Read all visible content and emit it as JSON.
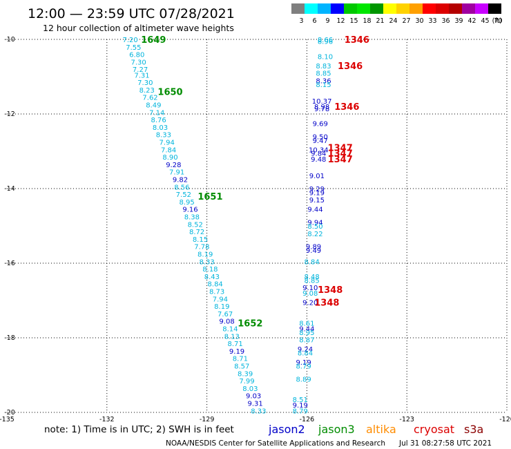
{
  "header": {
    "title": "12:00 — 23:59 UTC 07/28/2021",
    "subtitle": "12 hour collection of altimeter wave heights"
  },
  "colorbar": {
    "unit_label": "(ft)",
    "ticks": [
      "3",
      "6",
      "9",
      "12",
      "15",
      "18",
      "21",
      "24",
      "27",
      "30",
      "33",
      "36",
      "39",
      "42",
      "45",
      "70"
    ],
    "colors": [
      "#7f7f7f",
      "#00ffff",
      "#00b4ff",
      "#0000ff",
      "#00c800",
      "#00e600",
      "#009600",
      "#ffff00",
      "#ffd200",
      "#ffa000",
      "#ff0000",
      "#dc0000",
      "#b40000",
      "#a000a0",
      "#c800ff",
      "#000000"
    ]
  },
  "footer": {
    "note": "note:  1) Time is in UTC;  2) SWH is in feet",
    "credit": "NOAA/NESDIS Center for Satellite Applications and Research",
    "timestamp": "Jul 31 08:27:58 UTC 2021"
  },
  "legend": [
    {
      "name": "jason2",
      "color": "#0000c8"
    },
    {
      "name": "jason3",
      "color": "#008c00"
    },
    {
      "name": "altika",
      "color": "#ff8c00"
    },
    {
      "name": "cryosat",
      "color": "#dc0000"
    },
    {
      "name": "s3a",
      "color": "#8b0000"
    }
  ],
  "chart_data": {
    "type": "scatter",
    "xlim": [
      -135,
      -120
    ],
    "ylim": [
      -20,
      -10
    ],
    "x_ticks": [
      "-135",
      "-132",
      "-129",
      "-126",
      "-123",
      "-120"
    ],
    "y_ticks": [
      "-10",
      "-12",
      "-14",
      "-16",
      "-18",
      "-20"
    ],
    "grid": true,
    "colors": {
      "cyan": "#00b4dc",
      "blue": "#0000c8",
      "green": "#008c00",
      "red": "#dc0000"
    },
    "time_labels": [
      {
        "text": "1649",
        "x": -130.6,
        "y": -10.0,
        "color": "green"
      },
      {
        "text": "1650",
        "x": -130.1,
        "y": -11.4,
        "color": "green"
      },
      {
        "text": "1651",
        "x": -128.9,
        "y": -14.2,
        "color": "green"
      },
      {
        "text": "1652",
        "x": -127.7,
        "y": -17.6,
        "color": "green"
      },
      {
        "text": "1346",
        "x": -124.5,
        "y": -10.0,
        "color": "red"
      },
      {
        "text": "1346",
        "x": -124.7,
        "y": -10.7,
        "color": "red"
      },
      {
        "text": "1346",
        "x": -124.8,
        "y": -11.8,
        "color": "red"
      },
      {
        "text": "1347",
        "x": -125.0,
        "y": -12.9,
        "color": "red"
      },
      {
        "text": "1347",
        "x": -125.0,
        "y": -13.05,
        "color": "red"
      },
      {
        "text": "1347",
        "x": -125.0,
        "y": -13.2,
        "color": "red"
      },
      {
        "text": "1348",
        "x": -125.3,
        "y": -16.7,
        "color": "red"
      },
      {
        "text": "1348",
        "x": -125.4,
        "y": -17.05,
        "color": "red"
      }
    ],
    "series": [
      {
        "name": "jason3",
        "points": [
          {
            "text": "7.20",
            "x": -131.3,
            "y": -10.0,
            "color": "cyan"
          },
          {
            "text": "7.55",
            "x": -131.2,
            "y": -10.2,
            "color": "cyan"
          },
          {
            "text": "6.80",
            "x": -131.1,
            "y": -10.4,
            "color": "cyan"
          },
          {
            "text": "7.30",
            "x": -131.05,
            "y": -10.6,
            "color": "cyan"
          },
          {
            "text": "7.27",
            "x": -131.0,
            "y": -10.8,
            "color": "cyan"
          },
          {
            "text": "7.31",
            "x": -130.95,
            "y": -10.95,
            "color": "cyan"
          },
          {
            "text": "7.30",
            "x": -130.85,
            "y": -11.15,
            "color": "cyan"
          },
          {
            "text": "8.23",
            "x": -130.8,
            "y": -11.35,
            "color": "cyan"
          },
          {
            "text": "7.62",
            "x": -130.7,
            "y": -11.55,
            "color": "cyan"
          },
          {
            "text": "8.49",
            "x": -130.6,
            "y": -11.75,
            "color": "cyan"
          },
          {
            "text": "7.14",
            "x": -130.5,
            "y": -11.95,
            "color": "cyan"
          },
          {
            "text": "8.76",
            "x": -130.45,
            "y": -12.15,
            "color": "cyan"
          },
          {
            "text": "8.03",
            "x": -130.4,
            "y": -12.35,
            "color": "cyan"
          },
          {
            "text": "8.33",
            "x": -130.3,
            "y": -12.55,
            "color": "cyan"
          },
          {
            "text": "7.94",
            "x": -130.2,
            "y": -12.75,
            "color": "cyan"
          },
          {
            "text": "7.84",
            "x": -130.15,
            "y": -12.95,
            "color": "cyan"
          },
          {
            "text": "8.90",
            "x": -130.1,
            "y": -13.15,
            "color": "cyan"
          },
          {
            "text": "9.28",
            "x": -130.0,
            "y": -13.35,
            "color": "blue"
          },
          {
            "text": "7.91",
            "x": -129.9,
            "y": -13.55,
            "color": "cyan"
          },
          {
            "text": "9.82",
            "x": -129.8,
            "y": -13.75,
            "color": "blue"
          },
          {
            "text": "8.56",
            "x": -129.75,
            "y": -13.95,
            "color": "cyan"
          },
          {
            "text": "7.52",
            "x": -129.7,
            "y": -14.15,
            "color": "cyan"
          },
          {
            "text": "8.95",
            "x": -129.6,
            "y": -14.35,
            "color": "cyan"
          },
          {
            "text": "9.16",
            "x": -129.5,
            "y": -14.55,
            "color": "blue"
          },
          {
            "text": "8.38",
            "x": -129.45,
            "y": -14.75,
            "color": "cyan"
          },
          {
            "text": "8.52",
            "x": -129.35,
            "y": -14.95,
            "color": "cyan"
          },
          {
            "text": "8.72",
            "x": -129.3,
            "y": -15.15,
            "color": "cyan"
          },
          {
            "text": "8.15",
            "x": -129.2,
            "y": -15.35,
            "color": "cyan"
          },
          {
            "text": "7.78",
            "x": -129.15,
            "y": -15.55,
            "color": "cyan"
          },
          {
            "text": "8.19",
            "x": -129.05,
            "y": -15.75,
            "color": "cyan"
          },
          {
            "text": "8.33",
            "x": -129.0,
            "y": -15.95,
            "color": "cyan"
          },
          {
            "text": "8.18",
            "x": -128.9,
            "y": -16.15,
            "color": "cyan"
          },
          {
            "text": "8.43",
            "x": -128.85,
            "y": -16.35,
            "color": "cyan"
          },
          {
            "text": "8.84",
            "x": -128.75,
            "y": -16.55,
            "color": "cyan"
          },
          {
            "text": "8.73",
            "x": -128.7,
            "y": -16.75,
            "color": "cyan"
          },
          {
            "text": "7.94",
            "x": -128.6,
            "y": -16.95,
            "color": "cyan"
          },
          {
            "text": "8.19",
            "x": -128.55,
            "y": -17.15,
            "color": "cyan"
          },
          {
            "text": "7.67",
            "x": -128.45,
            "y": -17.35,
            "color": "cyan"
          },
          {
            "text": "9.08",
            "x": -128.4,
            "y": -17.55,
            "color": "blue"
          },
          {
            "text": "8.14",
            "x": -128.3,
            "y": -17.75,
            "color": "cyan"
          },
          {
            "text": "8.13",
            "x": -128.25,
            "y": -17.95,
            "color": "cyan"
          },
          {
            "text": "8.71",
            "x": -128.15,
            "y": -18.15,
            "color": "cyan"
          },
          {
            "text": "9.19",
            "x": -128.1,
            "y": -18.35,
            "color": "blue"
          },
          {
            "text": "8.71",
            "x": -128.0,
            "y": -18.55,
            "color": "cyan"
          },
          {
            "text": "8.57",
            "x": -127.95,
            "y": -18.75,
            "color": "cyan"
          },
          {
            "text": "8.39",
            "x": -127.85,
            "y": -18.95,
            "color": "cyan"
          },
          {
            "text": "7.99",
            "x": -127.8,
            "y": -19.15,
            "color": "cyan"
          },
          {
            "text": "8.03",
            "x": -127.7,
            "y": -19.35,
            "color": "cyan"
          },
          {
            "text": "9.03",
            "x": -127.6,
            "y": -19.55,
            "color": "blue"
          },
          {
            "text": "9.31",
            "x": -127.55,
            "y": -19.75,
            "color": "blue"
          },
          {
            "text": "8.33",
            "x": -127.45,
            "y": -19.95,
            "color": "cyan"
          }
        ]
      },
      {
        "name": "cryosat",
        "points": [
          {
            "text": "8.66",
            "x": -125.45,
            "y": -10.0,
            "color": "cyan"
          },
          {
            "text": "8.96",
            "x": -125.45,
            "y": -10.05,
            "color": "cyan"
          },
          {
            "text": "8.10",
            "x": -125.45,
            "y": -10.45,
            "color": "cyan"
          },
          {
            "text": "8.83",
            "x": -125.5,
            "y": -10.7,
            "color": "cyan"
          },
          {
            "text": "8.85",
            "x": -125.5,
            "y": -10.9,
            "color": "cyan"
          },
          {
            "text": "8.36",
            "x": -125.5,
            "y": -11.1,
            "color": "blue"
          },
          {
            "text": "8.15",
            "x": -125.5,
            "y": -11.2,
            "color": "cyan"
          },
          {
            "text": "10.37",
            "x": -125.55,
            "y": -11.65,
            "color": "blue"
          },
          {
            "text": "8.98",
            "x": -125.55,
            "y": -11.8,
            "color": "blue"
          },
          {
            "text": "9.78",
            "x": -125.55,
            "y": -11.85,
            "color": "blue"
          },
          {
            "text": "9.69",
            "x": -125.6,
            "y": -12.25,
            "color": "blue"
          },
          {
            "text": "9.50",
            "x": -125.6,
            "y": -12.6,
            "color": "blue"
          },
          {
            "text": "9.47",
            "x": -125.6,
            "y": -12.7,
            "color": "blue"
          },
          {
            "text": "10.34",
            "x": -125.65,
            "y": -12.95,
            "color": "blue"
          },
          {
            "text": "9.84",
            "x": -125.65,
            "y": -13.05,
            "color": "blue"
          },
          {
            "text": "9.48",
            "x": -125.65,
            "y": -13.2,
            "color": "blue"
          },
          {
            "text": "9.01",
            "x": -125.7,
            "y": -13.65,
            "color": "blue"
          },
          {
            "text": "9.29",
            "x": -125.7,
            "y": -14.0,
            "color": "blue"
          },
          {
            "text": "9.19",
            "x": -125.7,
            "y": -14.1,
            "color": "blue"
          },
          {
            "text": "9.15",
            "x": -125.7,
            "y": -14.3,
            "color": "blue"
          },
          {
            "text": "9.44",
            "x": -125.75,
            "y": -14.55,
            "color": "blue"
          },
          {
            "text": "9.94",
            "x": -125.75,
            "y": -14.9,
            "color": "blue"
          },
          {
            "text": "8.50",
            "x": -125.75,
            "y": -15.0,
            "color": "cyan"
          },
          {
            "text": "8.22",
            "x": -125.75,
            "y": -15.2,
            "color": "cyan"
          },
          {
            "text": "9.89",
            "x": -125.8,
            "y": -15.55,
            "color": "blue"
          },
          {
            "text": "9.49",
            "x": -125.8,
            "y": -15.65,
            "color": "blue"
          },
          {
            "text": "8.84",
            "x": -125.85,
            "y": -15.95,
            "color": "cyan"
          },
          {
            "text": "8.48",
            "x": -125.85,
            "y": -16.35,
            "color": "cyan"
          },
          {
            "text": "8.85",
            "x": -125.85,
            "y": -16.45,
            "color": "cyan"
          },
          {
            "text": "9.10",
            "x": -125.9,
            "y": -16.65,
            "color": "blue"
          },
          {
            "text": "9.08",
            "x": -125.9,
            "y": -16.8,
            "color": "cyan"
          },
          {
            "text": "9.20",
            "x": -125.9,
            "y": -17.05,
            "color": "blue"
          },
          {
            "text": "8.61",
            "x": -126.0,
            "y": -17.6,
            "color": "cyan"
          },
          {
            "text": "9.44",
            "x": -126.0,
            "y": -17.75,
            "color": "blue"
          },
          {
            "text": "8.95",
            "x": -126.0,
            "y": -17.85,
            "color": "cyan"
          },
          {
            "text": "8.87",
            "x": -126.0,
            "y": -18.05,
            "color": "cyan"
          },
          {
            "text": "9.24",
            "x": -126.05,
            "y": -18.3,
            "color": "blue"
          },
          {
            "text": "8.84",
            "x": -126.05,
            "y": -18.4,
            "color": "cyan"
          },
          {
            "text": "9.19",
            "x": -126.1,
            "y": -18.65,
            "color": "blue"
          },
          {
            "text": "8.79",
            "x": -126.1,
            "y": -18.75,
            "color": "cyan"
          },
          {
            "text": "8.89",
            "x": -126.1,
            "y": -19.1,
            "color": "cyan"
          },
          {
            "text": "8.51",
            "x": -126.2,
            "y": -19.65,
            "color": "cyan"
          },
          {
            "text": "9.19",
            "x": -126.2,
            "y": -19.8,
            "color": "blue"
          },
          {
            "text": "8.79",
            "x": -126.2,
            "y": -19.95,
            "color": "cyan"
          }
        ]
      }
    ]
  }
}
